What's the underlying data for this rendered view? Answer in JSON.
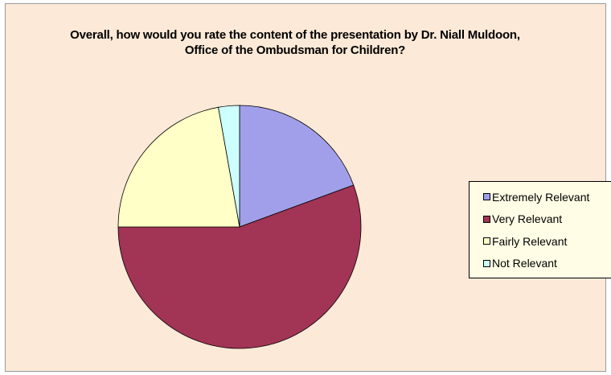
{
  "chart_data": {
    "type": "pie",
    "title": "Overall, how would you rate the content of the presentation by Dr. Niall Muldoon, Office of the Ombudsman for Children?",
    "categories": [
      "Extremely Relevant",
      "Very Relevant",
      "Fairly Relevant",
      "Not Relevant"
    ],
    "values": [
      19.4,
      55.6,
      22.2,
      2.8
    ],
    "colors": [
      "#A29FEA",
      "#A23455",
      "#FFFFC7",
      "#CDFFFF"
    ],
    "legend": "right",
    "background": "#FCE9D7",
    "legend_background": "#FFFDE6"
  }
}
